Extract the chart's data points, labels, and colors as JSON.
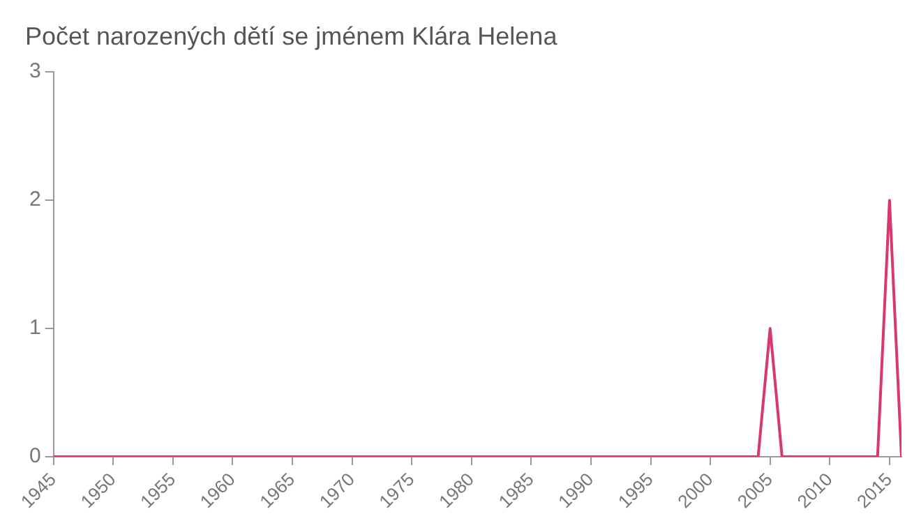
{
  "chart_data": {
    "type": "line",
    "title": "Počet narozených dětí se jménem Klára Helena",
    "x": [
      1945,
      2004,
      2005,
      2006,
      2014,
      2015,
      2016
    ],
    "series": [
      {
        "color": "#d9376e",
        "values": [
          0,
          0,
          1,
          0,
          0,
          2,
          0
        ]
      }
    ],
    "xlim": [
      1945,
      2016
    ],
    "xticks": [
      1945,
      1950,
      1955,
      1960,
      1965,
      1970,
      1975,
      1980,
      1985,
      1990,
      1995,
      2000,
      2005,
      2010,
      2015
    ],
    "ylim": [
      0,
      3
    ],
    "yticks": [
      0,
      1,
      2,
      3
    ],
    "grid": false,
    "legend": false,
    "marker": "none",
    "line_style": "solid"
  }
}
